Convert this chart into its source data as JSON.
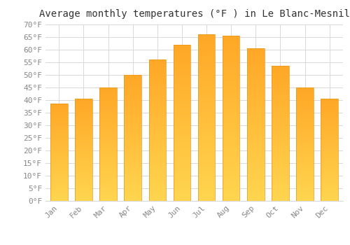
{
  "months": [
    "Jan",
    "Feb",
    "Mar",
    "Apr",
    "May",
    "Jun",
    "Jul",
    "Aug",
    "Sep",
    "Oct",
    "Nov",
    "Dec"
  ],
  "values": [
    38.5,
    40.5,
    45.0,
    50.0,
    56.0,
    62.0,
    66.0,
    65.5,
    60.5,
    53.5,
    45.0,
    40.5
  ],
  "bar_color_top": "#FFA726",
  "bar_color_bottom": "#FFD54F",
  "bar_edge_color": "#E6951A",
  "title": "Average monthly temperatures (°F ) in Le Blanc-Mesnil",
  "ylim": [
    0,
    70
  ],
  "ytick_step": 5,
  "background_color": "#ffffff",
  "grid_color": "#d8d8d8",
  "title_fontsize": 10,
  "tick_fontsize": 8,
  "font_family": "monospace",
  "tick_color": "#888888",
  "title_color": "#333333"
}
